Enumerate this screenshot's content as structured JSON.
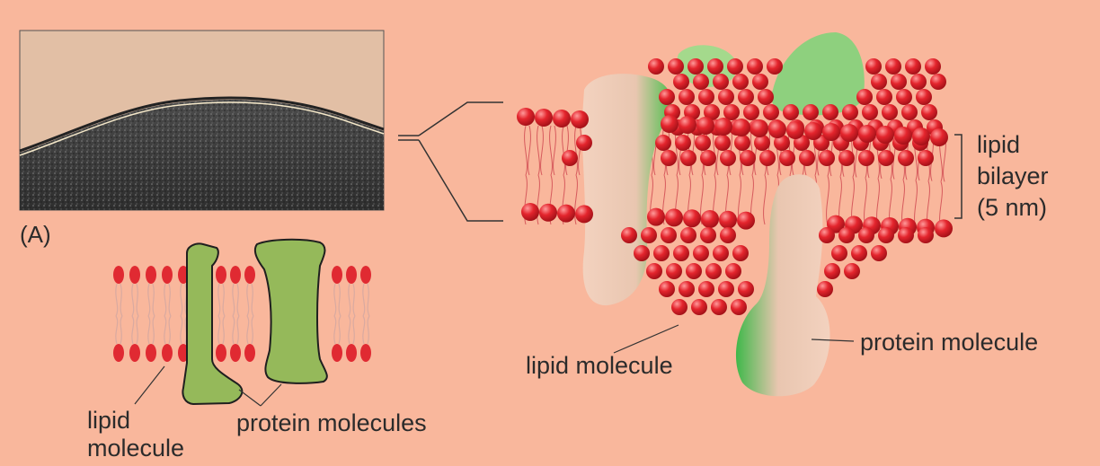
{
  "panel_label": "(A)",
  "labels": {
    "lipid_molecule_left_line1": "lipid",
    "lipid_molecule_left_line2": "molecule",
    "protein_molecules": "protein molecules",
    "lipid_molecule_right": "lipid molecule",
    "protein_molecule_right": "protein molecule",
    "bilayer_line1": "lipid",
    "bilayer_line2": "bilayer",
    "bilayer_line3": "(5 nm)"
  },
  "colors": {
    "background": "#f9b79c",
    "lipid_head": "#e02a32",
    "protein_green": "#95b95a",
    "protein_3d": "#3fbf4a",
    "micrograph_dark": "#3c3c3c"
  }
}
